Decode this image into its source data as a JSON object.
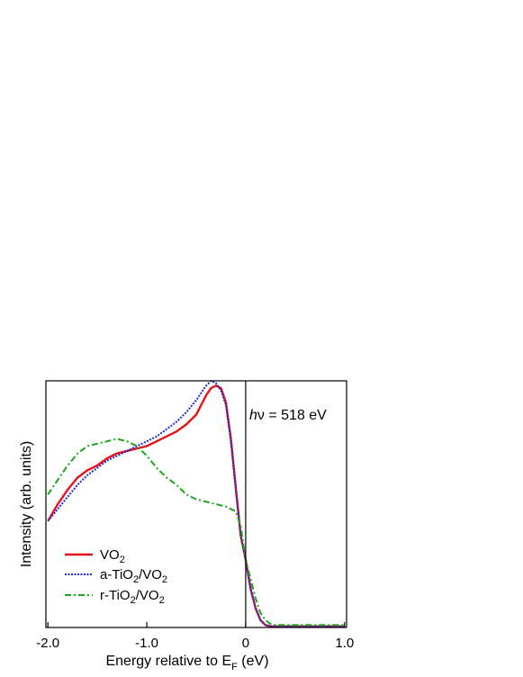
{
  "chart_data": {
    "type": "line",
    "xlabel": {
      "main": "Energy relative to E",
      "sub": "F",
      "tail": " (eV)"
    },
    "ylabel": "Intensity (arb. units)",
    "xlim": [
      -2.02,
      1.02
    ],
    "ylim": [
      0,
      1.02
    ],
    "xticks": [
      -2.0,
      -1.0,
      0,
      1.0
    ],
    "xtick_labels": [
      "-2.0",
      "-1.0",
      "0",
      "1.0"
    ],
    "grid": false,
    "legend_position": "bottom-left",
    "annotation": {
      "italic": "h",
      "rest": "ν = 518 eV"
    },
    "fermi_line_x": 0,
    "series": [
      {
        "key": "vo2",
        "name_parts": {
          "a": "VO",
          "sub": "2",
          "b": ""
        },
        "color": "#e8131a",
        "style": "solid",
        "x": [
          -2.0,
          -1.9,
          -1.8,
          -1.7,
          -1.6,
          -1.5,
          -1.4,
          -1.3,
          -1.2,
          -1.1,
          -1.0,
          -0.9,
          -0.8,
          -0.7,
          -0.6,
          -0.5,
          -0.45,
          -0.4,
          -0.35,
          -0.3,
          -0.25,
          -0.2,
          -0.15,
          -0.1,
          -0.05,
          0.0,
          0.05,
          0.1,
          0.15,
          0.2,
          0.25,
          0.3,
          0.4,
          0.5,
          0.6,
          0.7,
          0.8,
          0.9,
          1.0
        ],
        "y": [
          0.44,
          0.51,
          0.57,
          0.62,
          0.65,
          0.67,
          0.7,
          0.72,
          0.73,
          0.74,
          0.75,
          0.77,
          0.79,
          0.81,
          0.84,
          0.88,
          0.92,
          0.96,
          0.99,
          1.0,
          0.99,
          0.93,
          0.78,
          0.58,
          0.38,
          0.28,
          0.16,
          0.08,
          0.03,
          0.01,
          0.005,
          0.005,
          0.005,
          0.005,
          0.005,
          0.005,
          0.005,
          0.005,
          0.005
        ]
      },
      {
        "key": "atio2",
        "name_parts": {
          "a": "a-TiO",
          "sub": "2",
          "b": "/VO"
        },
        "name_sub2": "2",
        "color": "#1a2bd6",
        "style": "dotted",
        "x": [
          -2.0,
          -1.9,
          -1.8,
          -1.7,
          -1.6,
          -1.5,
          -1.4,
          -1.3,
          -1.2,
          -1.1,
          -1.0,
          -0.9,
          -0.8,
          -0.7,
          -0.6,
          -0.5,
          -0.45,
          -0.4,
          -0.35,
          -0.3,
          -0.25,
          -0.2,
          -0.15,
          -0.1,
          -0.05,
          0.0,
          0.05,
          0.1,
          0.15,
          0.2,
          0.25,
          0.3,
          0.4,
          0.5,
          0.6,
          0.7,
          0.8,
          0.9,
          1.0
        ],
        "y": [
          0.44,
          0.49,
          0.54,
          0.59,
          0.63,
          0.66,
          0.69,
          0.71,
          0.73,
          0.75,
          0.77,
          0.79,
          0.82,
          0.85,
          0.89,
          0.94,
          0.97,
          1.0,
          1.02,
          1.01,
          0.98,
          0.92,
          0.77,
          0.57,
          0.38,
          0.28,
          0.16,
          0.08,
          0.03,
          0.01,
          0.005,
          0.005,
          0.005,
          0.005,
          0.005,
          0.005,
          0.005,
          0.005,
          0.005
        ]
      },
      {
        "key": "rtio2",
        "name_parts": {
          "a": "r-TiO",
          "sub": "2",
          "b": "/VO"
        },
        "name_sub2": "2",
        "color": "#1aa51a",
        "style": "dash-dot",
        "x": [
          -2.0,
          -1.9,
          -1.8,
          -1.7,
          -1.6,
          -1.5,
          -1.4,
          -1.3,
          -1.2,
          -1.1,
          -1.0,
          -0.9,
          -0.8,
          -0.7,
          -0.6,
          -0.5,
          -0.4,
          -0.3,
          -0.2,
          -0.15,
          -0.1,
          -0.05,
          0.0,
          0.05,
          0.1,
          0.15,
          0.2,
          0.25,
          0.3,
          0.4,
          0.5,
          0.6,
          0.7,
          0.8,
          0.9,
          1.0
        ],
        "y": [
          0.55,
          0.61,
          0.67,
          0.72,
          0.75,
          0.76,
          0.77,
          0.78,
          0.77,
          0.75,
          0.71,
          0.66,
          0.62,
          0.59,
          0.55,
          0.53,
          0.52,
          0.51,
          0.5,
          0.49,
          0.48,
          0.42,
          0.28,
          0.2,
          0.12,
          0.06,
          0.03,
          0.015,
          0.01,
          0.01,
          0.01,
          0.01,
          0.01,
          0.01,
          0.01,
          0.01
        ]
      }
    ]
  }
}
